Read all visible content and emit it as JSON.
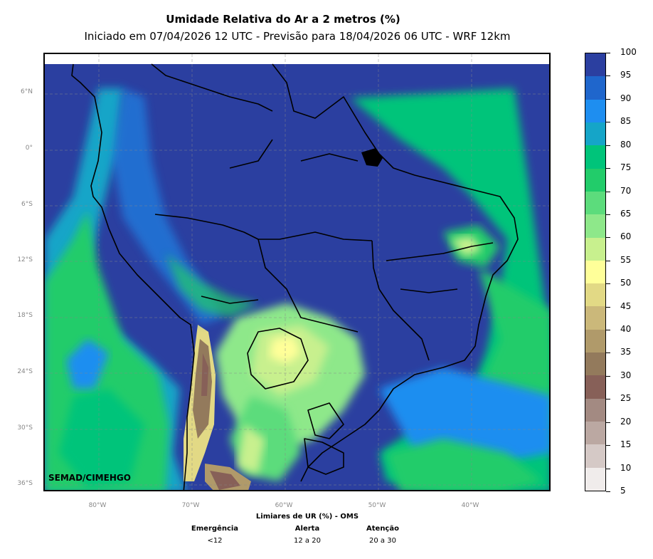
{
  "title": "Umidade Relativa do Ar a 2 metros (%)",
  "subtitle": "Iniciado em 07/04/2026 12 UTC - Previsão para 18/04/2026 06 UTC - WRF 12km",
  "credit": "SEMAD/CIMEHGO",
  "lat_labels": [
    "6°N",
    "0°",
    "6°S",
    "12°S",
    "18°S",
    "24°S",
    "30°S",
    "36°S"
  ],
  "lon_labels": [
    "80°W",
    "70°W",
    "60°W",
    "50°W",
    "40°W"
  ],
  "colorbar": {
    "labels": [
      "100",
      "95",
      "90",
      "85",
      "80",
      "75",
      "70",
      "65",
      "60",
      "55",
      "50",
      "45",
      "40",
      "35",
      "30",
      "25",
      "20",
      "15",
      "10",
      "5"
    ],
    "colors_top_to_bottom": [
      "#2b3fa0",
      "#1f66cc",
      "#1e8ef0",
      "#15a5c8",
      "#00c47a",
      "#22cc6a",
      "#5cdc7c",
      "#8ee88a",
      "#c8f08e",
      "#ffff99",
      "#e2d985",
      "#cbb87a",
      "#b09a6a",
      "#937a5c",
      "#876058",
      "#a38a82",
      "#bba8a2",
      "#d5c9c6",
      "#f0eceb"
    ]
  },
  "thresholds": {
    "title": "Limiares de UR (%) - OMS",
    "columns": [
      {
        "name": "Emergência",
        "value": "<12"
      },
      {
        "name": "Alerta",
        "value": "12 a 20"
      },
      {
        "name": "Atenção",
        "value": "20 a 30"
      }
    ]
  }
}
